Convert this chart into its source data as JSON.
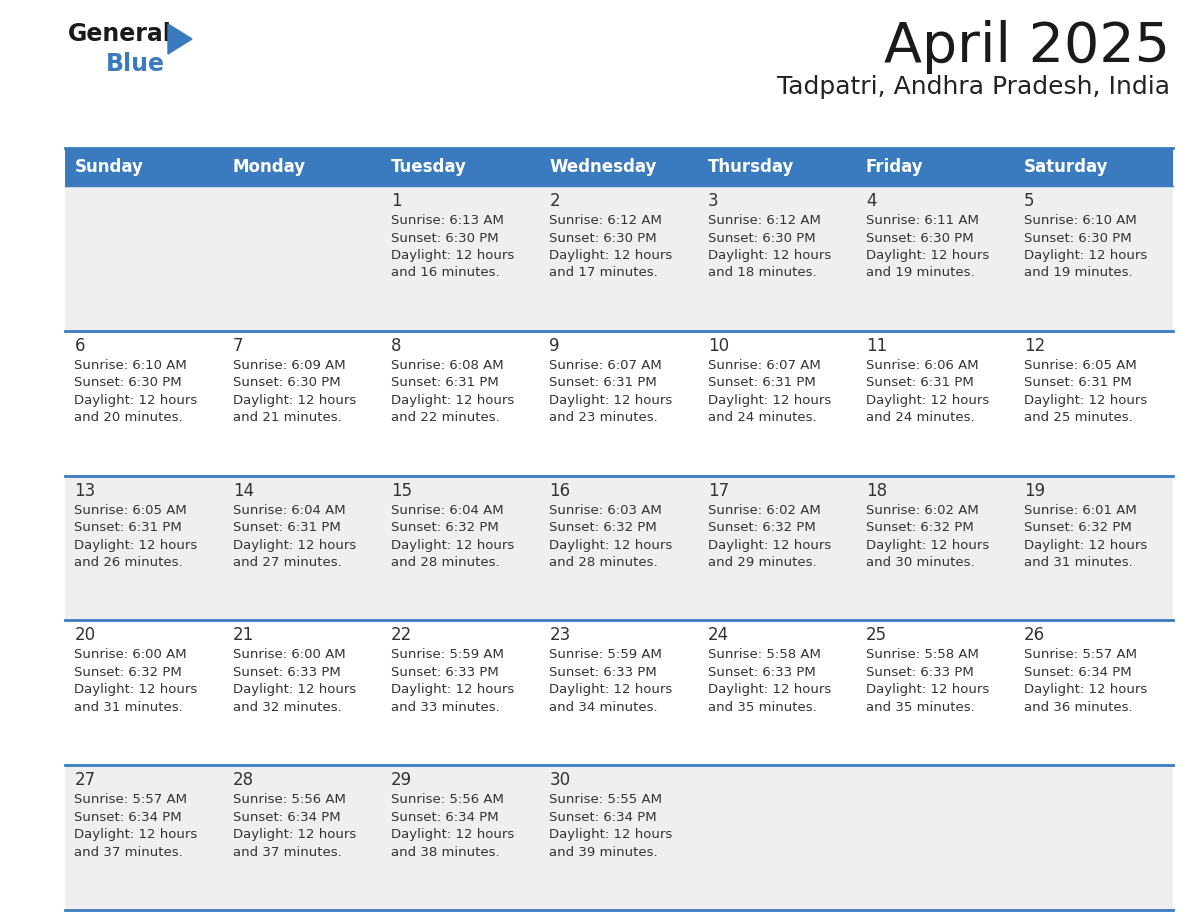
{
  "title": "April 2025",
  "subtitle": "Tadpatri, Andhra Pradesh, India",
  "header_color": "#3a7bbf",
  "header_text_color": "#ffffff",
  "background_color": "#ffffff",
  "cell_bg_odd": "#efefef",
  "cell_bg_even": "#ffffff",
  "border_color": "#3a7bbf",
  "text_color": "#333333",
  "day_names": [
    "Sunday",
    "Monday",
    "Tuesday",
    "Wednesday",
    "Thursday",
    "Friday",
    "Saturday"
  ],
  "days": [
    {
      "day": 1,
      "col": 2,
      "row": 0,
      "sunrise": "6:13 AM",
      "sunset": "6:30 PM",
      "daylight_hrs": 12,
      "daylight_mins": 16
    },
    {
      "day": 2,
      "col": 3,
      "row": 0,
      "sunrise": "6:12 AM",
      "sunset": "6:30 PM",
      "daylight_hrs": 12,
      "daylight_mins": 17
    },
    {
      "day": 3,
      "col": 4,
      "row": 0,
      "sunrise": "6:12 AM",
      "sunset": "6:30 PM",
      "daylight_hrs": 12,
      "daylight_mins": 18
    },
    {
      "day": 4,
      "col": 5,
      "row": 0,
      "sunrise": "6:11 AM",
      "sunset": "6:30 PM",
      "daylight_hrs": 12,
      "daylight_mins": 19
    },
    {
      "day": 5,
      "col": 6,
      "row": 0,
      "sunrise": "6:10 AM",
      "sunset": "6:30 PM",
      "daylight_hrs": 12,
      "daylight_mins": 19
    },
    {
      "day": 6,
      "col": 0,
      "row": 1,
      "sunrise": "6:10 AM",
      "sunset": "6:30 PM",
      "daylight_hrs": 12,
      "daylight_mins": 20
    },
    {
      "day": 7,
      "col": 1,
      "row": 1,
      "sunrise": "6:09 AM",
      "sunset": "6:30 PM",
      "daylight_hrs": 12,
      "daylight_mins": 21
    },
    {
      "day": 8,
      "col": 2,
      "row": 1,
      "sunrise": "6:08 AM",
      "sunset": "6:31 PM",
      "daylight_hrs": 12,
      "daylight_mins": 22
    },
    {
      "day": 9,
      "col": 3,
      "row": 1,
      "sunrise": "6:07 AM",
      "sunset": "6:31 PM",
      "daylight_hrs": 12,
      "daylight_mins": 23
    },
    {
      "day": 10,
      "col": 4,
      "row": 1,
      "sunrise": "6:07 AM",
      "sunset": "6:31 PM",
      "daylight_hrs": 12,
      "daylight_mins": 24
    },
    {
      "day": 11,
      "col": 5,
      "row": 1,
      "sunrise": "6:06 AM",
      "sunset": "6:31 PM",
      "daylight_hrs": 12,
      "daylight_mins": 24
    },
    {
      "day": 12,
      "col": 6,
      "row": 1,
      "sunrise": "6:05 AM",
      "sunset": "6:31 PM",
      "daylight_hrs": 12,
      "daylight_mins": 25
    },
    {
      "day": 13,
      "col": 0,
      "row": 2,
      "sunrise": "6:05 AM",
      "sunset": "6:31 PM",
      "daylight_hrs": 12,
      "daylight_mins": 26
    },
    {
      "day": 14,
      "col": 1,
      "row": 2,
      "sunrise": "6:04 AM",
      "sunset": "6:31 PM",
      "daylight_hrs": 12,
      "daylight_mins": 27
    },
    {
      "day": 15,
      "col": 2,
      "row": 2,
      "sunrise": "6:04 AM",
      "sunset": "6:32 PM",
      "daylight_hrs": 12,
      "daylight_mins": 28
    },
    {
      "day": 16,
      "col": 3,
      "row": 2,
      "sunrise": "6:03 AM",
      "sunset": "6:32 PM",
      "daylight_hrs": 12,
      "daylight_mins": 28
    },
    {
      "day": 17,
      "col": 4,
      "row": 2,
      "sunrise": "6:02 AM",
      "sunset": "6:32 PM",
      "daylight_hrs": 12,
      "daylight_mins": 29
    },
    {
      "day": 18,
      "col": 5,
      "row": 2,
      "sunrise": "6:02 AM",
      "sunset": "6:32 PM",
      "daylight_hrs": 12,
      "daylight_mins": 30
    },
    {
      "day": 19,
      "col": 6,
      "row": 2,
      "sunrise": "6:01 AM",
      "sunset": "6:32 PM",
      "daylight_hrs": 12,
      "daylight_mins": 31
    },
    {
      "day": 20,
      "col": 0,
      "row": 3,
      "sunrise": "6:00 AM",
      "sunset": "6:32 PM",
      "daylight_hrs": 12,
      "daylight_mins": 31
    },
    {
      "day": 21,
      "col": 1,
      "row": 3,
      "sunrise": "6:00 AM",
      "sunset": "6:33 PM",
      "daylight_hrs": 12,
      "daylight_mins": 32
    },
    {
      "day": 22,
      "col": 2,
      "row": 3,
      "sunrise": "5:59 AM",
      "sunset": "6:33 PM",
      "daylight_hrs": 12,
      "daylight_mins": 33
    },
    {
      "day": 23,
      "col": 3,
      "row": 3,
      "sunrise": "5:59 AM",
      "sunset": "6:33 PM",
      "daylight_hrs": 12,
      "daylight_mins": 34
    },
    {
      "day": 24,
      "col": 4,
      "row": 3,
      "sunrise": "5:58 AM",
      "sunset": "6:33 PM",
      "daylight_hrs": 12,
      "daylight_mins": 35
    },
    {
      "day": 25,
      "col": 5,
      "row": 3,
      "sunrise": "5:58 AM",
      "sunset": "6:33 PM",
      "daylight_hrs": 12,
      "daylight_mins": 35
    },
    {
      "day": 26,
      "col": 6,
      "row": 3,
      "sunrise": "5:57 AM",
      "sunset": "6:34 PM",
      "daylight_hrs": 12,
      "daylight_mins": 36
    },
    {
      "day": 27,
      "col": 0,
      "row": 4,
      "sunrise": "5:57 AM",
      "sunset": "6:34 PM",
      "daylight_hrs": 12,
      "daylight_mins": 37
    },
    {
      "day": 28,
      "col": 1,
      "row": 4,
      "sunrise": "5:56 AM",
      "sunset": "6:34 PM",
      "daylight_hrs": 12,
      "daylight_mins": 37
    },
    {
      "day": 29,
      "col": 2,
      "row": 4,
      "sunrise": "5:56 AM",
      "sunset": "6:34 PM",
      "daylight_hrs": 12,
      "daylight_mins": 38
    },
    {
      "day": 30,
      "col": 3,
      "row": 4,
      "sunrise": "5:55 AM",
      "sunset": "6:34 PM",
      "daylight_hrs": 12,
      "daylight_mins": 39
    }
  ],
  "num_rows": 5,
  "num_cols": 7
}
